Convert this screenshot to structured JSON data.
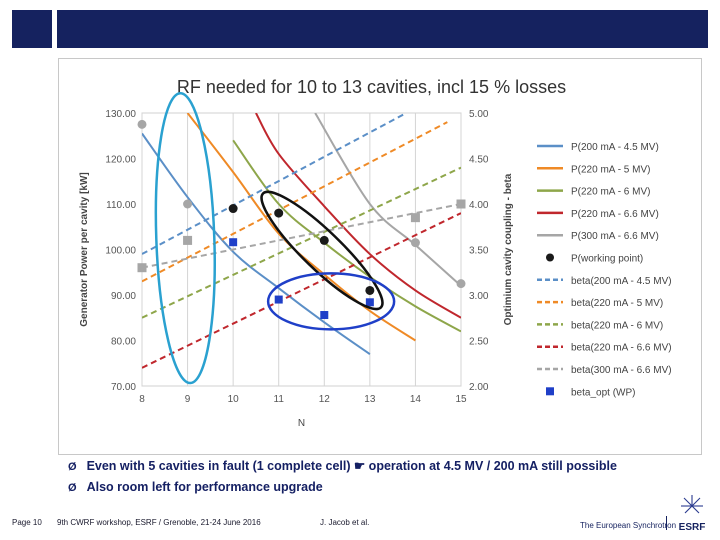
{
  "chart_data": {
    "type": "line",
    "title": "RF needed for 10 to 13 cavities, incl 15 % losses",
    "xlabel": "N",
    "ylabel_left": "Generator Power per cavity [kW]",
    "ylabel_right": "Optimium cavity coupling - beta",
    "xlim": [
      8,
      15
    ],
    "ylim_left": [
      70,
      130
    ],
    "ylim_right": [
      2.0,
      5.0
    ],
    "x_ticks": [
      "8",
      "9",
      "10",
      "11",
      "12",
      "13",
      "14",
      "15"
    ],
    "y_left_ticks": [
      "70.00",
      "80.00",
      "90.00",
      "100.00",
      "110.00",
      "120.00",
      "130.00"
    ],
    "y_right_ticks": [
      "2.00",
      "2.50",
      "3.00",
      "3.50",
      "4.00",
      "4.50",
      "5.00"
    ],
    "grid": "vertical",
    "legend_position": "right",
    "power_series": [
      {
        "name": "P(200 mA - 4.5 MV)",
        "color": "#5b8fc7",
        "x": [
          8,
          9,
          10,
          11,
          12,
          13
        ],
        "values": [
          125.5,
          111.5,
          99.5,
          91.5,
          84.0,
          77.0
        ]
      },
      {
        "name": "P(220 mA - 5 MV)",
        "color": "#ef8a26",
        "x": [
          9,
          10,
          11,
          12,
          13,
          14
        ],
        "values": [
          130.0,
          117.0,
          103.5,
          94.5,
          86.5,
          80.0
        ]
      },
      {
        "name": "P(220 mA - 6 MV)",
        "color": "#8ea64a",
        "x": [
          10,
          11,
          12,
          13,
          14,
          15
        ],
        "values": [
          124.0,
          110.0,
          101.5,
          94.0,
          87.5,
          82.0
        ]
      },
      {
        "name": "P(220 mA - 6.6 MV)",
        "color": "#c0272d",
        "x": [
          10.5,
          11,
          12,
          13,
          14,
          15
        ],
        "values": [
          130.0,
          121.0,
          109.5,
          99.0,
          91.0,
          85.0
        ]
      },
      {
        "name": "P(300 mA - 6.6 MV)",
        "color": "#a6a6a6",
        "x": [
          11.8,
          13,
          14,
          15
        ],
        "values": [
          130.0,
          110.0,
          101.0,
          92.0
        ]
      }
    ],
    "beta_series": [
      {
        "name": "beta(200 mA - 4.5 MV)",
        "color": "#5b8fc7",
        "x": [
          8,
          13.8
        ],
        "values": [
          3.45,
          5.0
        ]
      },
      {
        "name": "beta(220 mA - 5 MV)",
        "color": "#ef8a26",
        "x": [
          8,
          14.7
        ],
        "values": [
          3.15,
          4.9
        ]
      },
      {
        "name": "beta(220 mA - 6 MV)",
        "color": "#8ea64a",
        "x": [
          8,
          15
        ],
        "values": [
          2.75,
          4.4
        ]
      },
      {
        "name": "beta(220 mA - 6.6 MV)",
        "color": "#c0272d",
        "x": [
          8,
          15
        ],
        "values": [
          2.2,
          3.9
        ]
      },
      {
        "name": "beta(300 mA - 6.6 MV)",
        "color": "#a6a6a6",
        "x": [
          8,
          15
        ],
        "values": [
          3.3,
          4.0
        ]
      }
    ],
    "beta_markers_grey": {
      "name": "beta(300 mA - 6.6 MV)",
      "color": "#a6a6a6",
      "x": [
        8,
        9,
        14,
        15
      ],
      "values": [
        3.3,
        3.6,
        3.85,
        4.0
      ]
    },
    "power_markers_grey": {
      "x": [
        8,
        9,
        14,
        15
      ],
      "values": [
        127.5,
        110.0,
        101.5,
        92.5
      ]
    },
    "working_points": {
      "name": "P(working point)",
      "color": "#1a1a1a",
      "x": [
        10,
        11,
        12,
        13
      ],
      "values": [
        109.0,
        108.0,
        102.0,
        91.0
      ]
    },
    "beta_opt": {
      "name": "beta_opt (WP)",
      "color": "#1f3fc8",
      "x": [
        10,
        11,
        12,
        13
      ],
      "values": [
        3.58,
        2.95,
        2.78,
        2.92
      ]
    },
    "annotations": [
      {
        "shape": "ellipse",
        "color": "#2aa1d0"
      },
      {
        "shape": "ellipse",
        "color": "#111111"
      },
      {
        "shape": "ellipse",
        "color": "#1f3fc8"
      }
    ]
  },
  "slide": {
    "bullets": [
      "Even with 5 cavities in fault (1 complete cell) ☛ operation at 4.5 MV / 200 mA still possible",
      "Also room left for performance upgrade"
    ],
    "bullet_marker": "Ø",
    "footer": {
      "page": "Page 10",
      "workshop": "9th CWRF workshop, ESRF / Grenoble, 21-24 June 2016",
      "author": "J. Jacob et al.",
      "org": "The European Synchrotron",
      "logo_text": "ESRF"
    }
  }
}
